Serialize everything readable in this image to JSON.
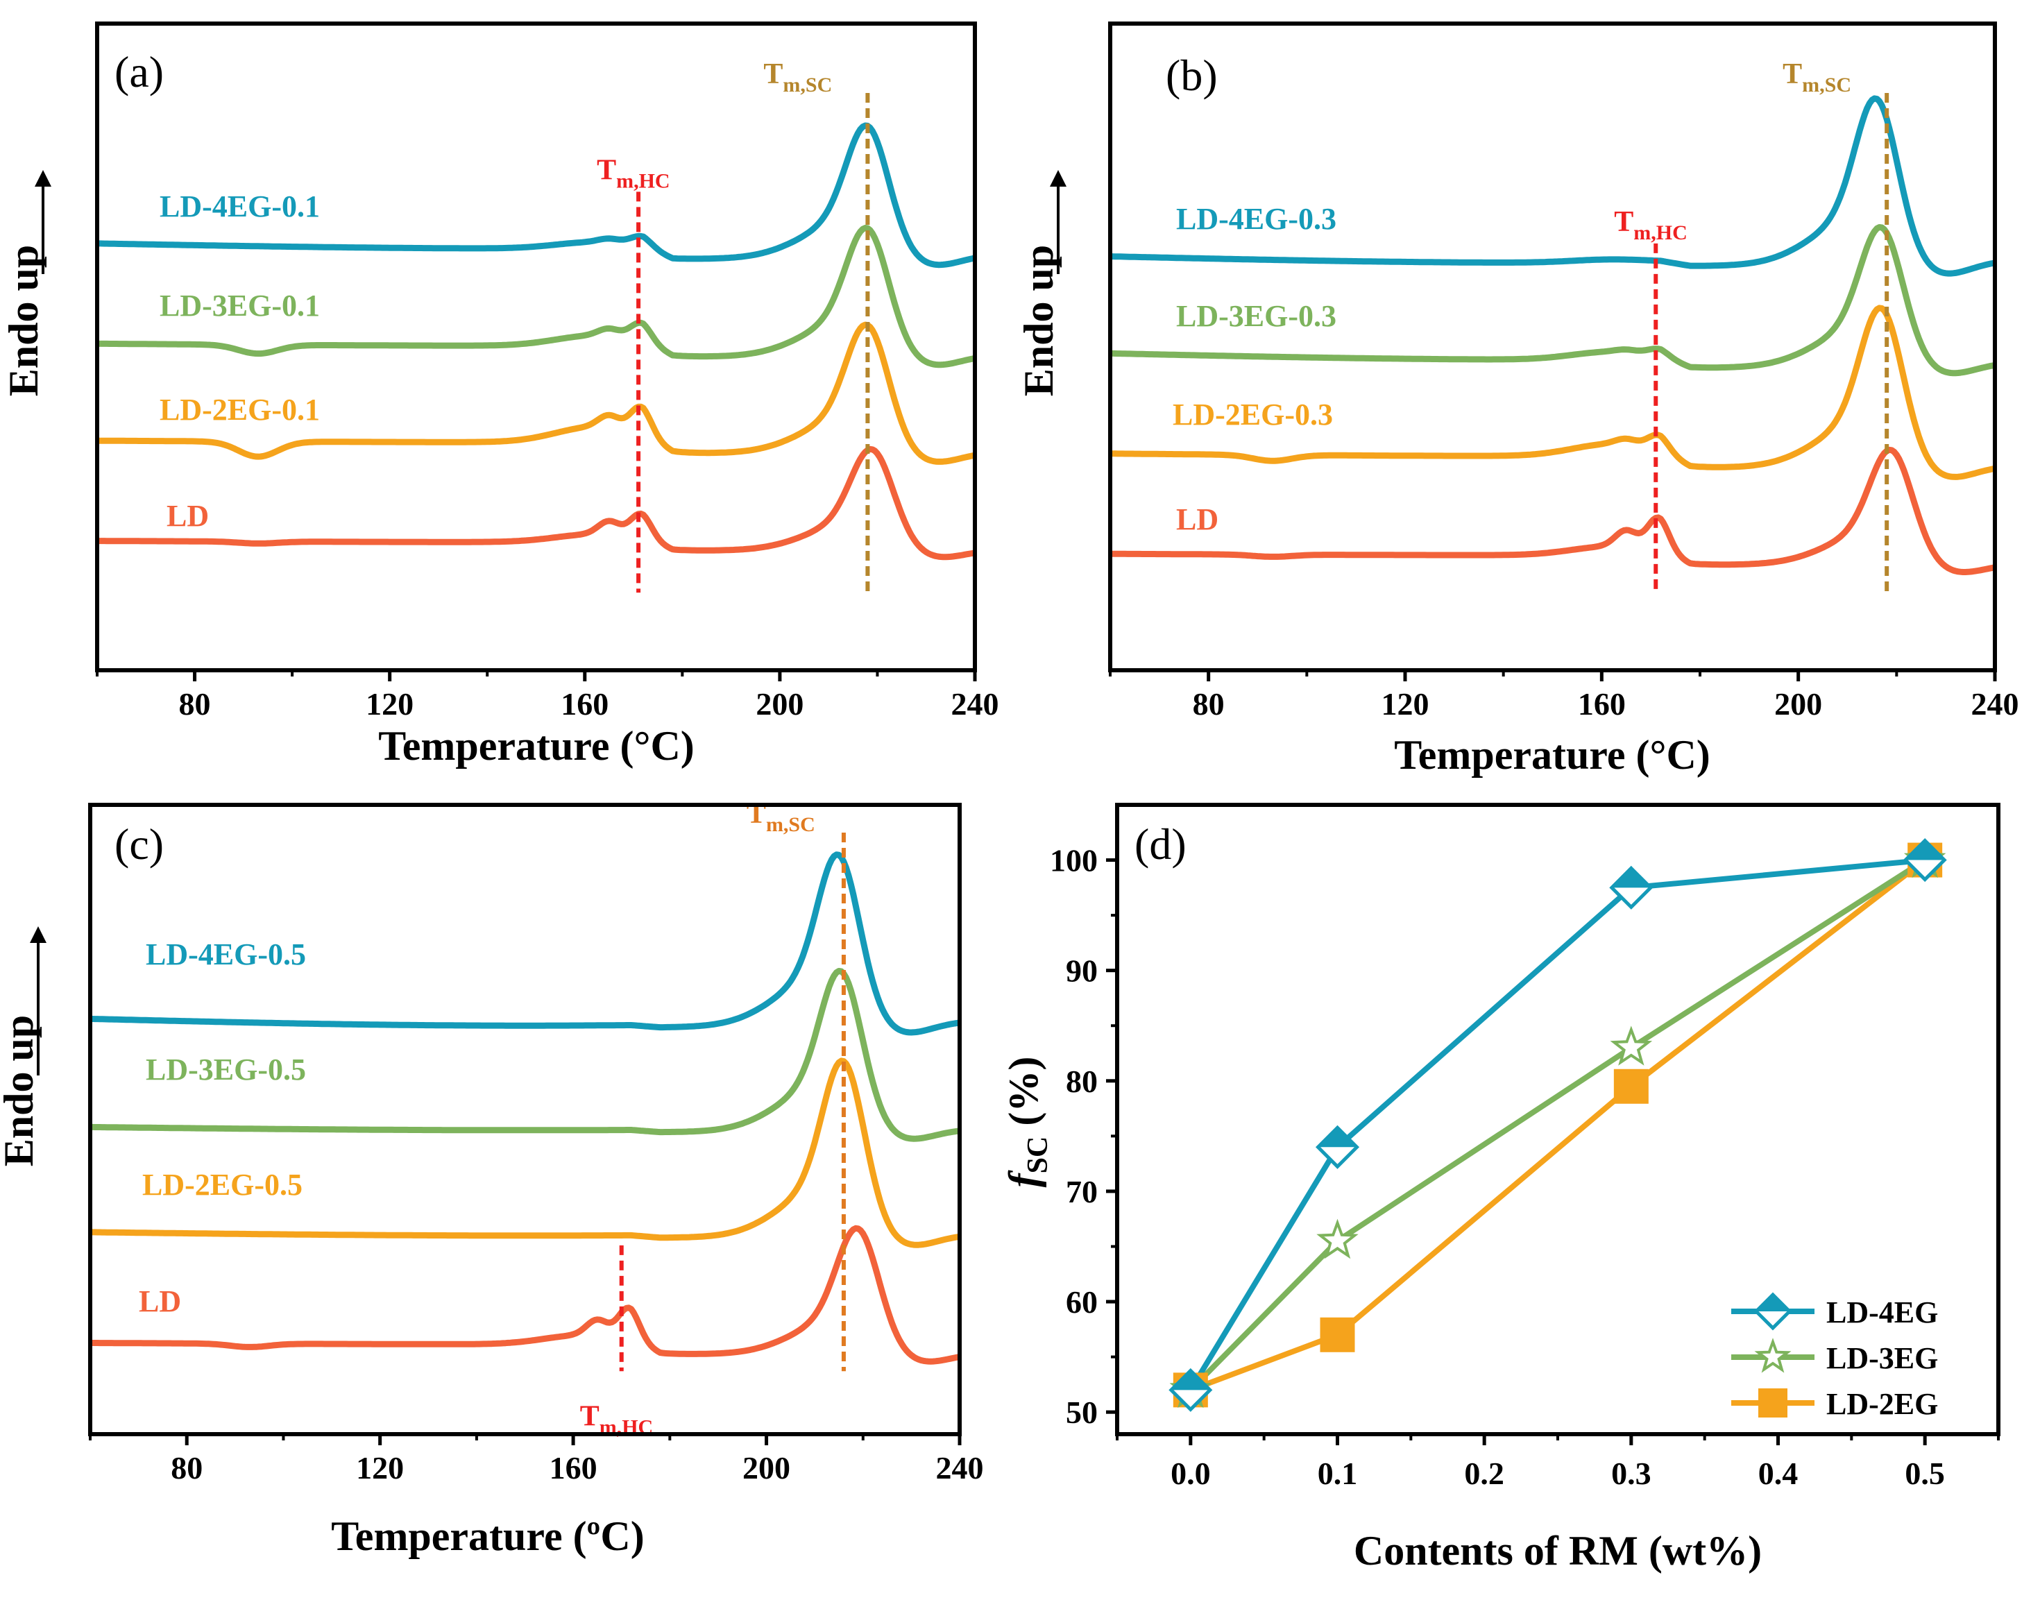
{
  "colors": {
    "LD-4EG": "#149ab8",
    "LD-3EG": "#7db35c",
    "LD-2EG": "#f5a31c",
    "LD": "#f2623a",
    "Tm_HC": "#ee2020",
    "Tm_SC": "#b5862c",
    "Tm_SC_c": "#e07a20"
  },
  "chart_data": [
    {
      "type": "line",
      "panel_label": "(a)",
      "xlabel": "Temperature (°C)",
      "ylabel": "Endo up",
      "xlim": [
        60,
        240
      ],
      "xticks": [
        "80",
        "120",
        "160",
        "200",
        "240"
      ],
      "markers": [
        {
          "main": "T",
          "sub": "m,HC",
          "x": 171,
          "color": "Tm_HC"
        },
        {
          "main": "T",
          "sub": "m,SC",
          "x": 218,
          "color": "Tm_SC"
        }
      ],
      "series": [
        {
          "name": "LD-4EG-0.1",
          "color": "LD-4EG"
        },
        {
          "name": "LD-3EG-0.1",
          "color": "LD-3EG"
        },
        {
          "name": "LD-2EG-0.1",
          "color": "LD-2EG"
        },
        {
          "name": "LD",
          "color": "LD"
        }
      ]
    },
    {
      "type": "line",
      "panel_label": "(b)",
      "xlabel": "Temperature (°C)",
      "ylabel": "Endo up",
      "xlim": [
        60,
        240
      ],
      "xticks": [
        "80",
        "120",
        "160",
        "200",
        "240"
      ],
      "markers": [
        {
          "main": "T",
          "sub": "m,HC",
          "x": 171,
          "color": "Tm_HC"
        },
        {
          "main": "T",
          "sub": "m,SC",
          "x": 218,
          "color": "Tm_SC"
        }
      ],
      "series": [
        {
          "name": "LD-4EG-0.3",
          "color": "LD-4EG"
        },
        {
          "name": "LD-3EG-0.3",
          "color": "LD-3EG"
        },
        {
          "name": "LD-2EG-0.3",
          "color": "LD-2EG"
        },
        {
          "name": "LD",
          "color": "LD"
        }
      ]
    },
    {
      "type": "line",
      "panel_label": "(c)",
      "xlabel": "Temperature (ºC)",
      "ylabel": "Endo up",
      "xlim": [
        60,
        240
      ],
      "xticks": [
        "80",
        "120",
        "160",
        "200",
        "240"
      ],
      "markers": [
        {
          "main": "T",
          "sub": "m,HC",
          "x": 170,
          "color": "Tm_HC"
        },
        {
          "main": "T",
          "sub": "m,SC",
          "x": 216,
          "color": "Tm_SC_c"
        }
      ],
      "series": [
        {
          "name": "LD-4EG-0.5",
          "color": "LD-4EG"
        },
        {
          "name": "LD-3EG-0.5",
          "color": "LD-3EG"
        },
        {
          "name": "LD-2EG-0.5",
          "color": "LD-2EG"
        },
        {
          "name": "LD",
          "color": "LD"
        }
      ]
    },
    {
      "type": "line",
      "panel_label": "(d)",
      "xlabel": "Contents of RM (wt%)",
      "ylabel_main": "f",
      "ylabel_sub": "SC",
      "ylabel_rest": " (%)",
      "xlim": [
        -0.05,
        0.55
      ],
      "ylim": [
        48,
        105
      ],
      "xticks": [
        "0.0",
        "0.1",
        "0.2",
        "0.3",
        "0.4",
        "0.5"
      ],
      "yticks": [
        "50",
        "60",
        "70",
        "80",
        "90",
        "100"
      ],
      "x": [
        0.0,
        0.1,
        0.3,
        0.5
      ],
      "series": [
        {
          "name": "LD-4EG",
          "color": "LD-4EG",
          "marker": "diamond",
          "values": [
            52,
            74,
            97.5,
            100
          ]
        },
        {
          "name": "LD-3EG",
          "color": "LD-3EG",
          "marker": "star",
          "values": [
            52,
            65.5,
            83,
            100
          ]
        },
        {
          "name": "LD-2EG",
          "color": "LD-2EG",
          "marker": "square",
          "values": [
            52,
            57,
            79.5,
            100
          ]
        }
      ]
    }
  ]
}
